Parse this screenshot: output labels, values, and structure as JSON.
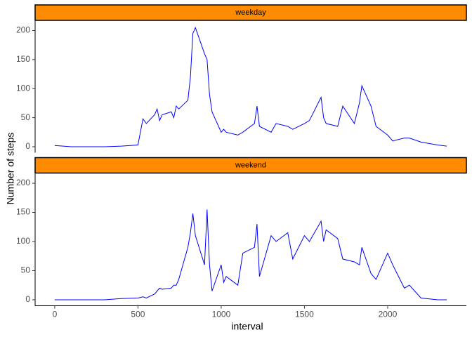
{
  "chart_data": {
    "type": "line",
    "xlabel": "interval",
    "ylabel": "Number of steps",
    "xlim": [
      -117.75,
      2472.75
    ],
    "ylim": [
      -10.3,
      216.3
    ],
    "xticks": [
      0,
      500,
      1000,
      1500,
      2000
    ],
    "yticks": [
      0,
      50,
      100,
      150,
      200
    ],
    "color": "#0000ff",
    "strip_color": "#ff8c00",
    "x": [
      0,
      100,
      200,
      300,
      400,
      500,
      530,
      550,
      600,
      615,
      630,
      645,
      700,
      715,
      730,
      745,
      800,
      815,
      830,
      845,
      900,
      915,
      930,
      945,
      1000,
      1015,
      1030,
      1100,
      1130,
      1200,
      1215,
      1230,
      1300,
      1330,
      1400,
      1430,
      1500,
      1530,
      1600,
      1615,
      1630,
      1700,
      1730,
      1800,
      1830,
      1845,
      1900,
      1930,
      2000,
      2030,
      2100,
      2130,
      2200,
      2300,
      2355
    ],
    "series": [
      {
        "name": "weekday",
        "values": [
          2,
          0,
          0,
          0,
          1,
          3,
          48,
          40,
          55,
          65,
          45,
          55,
          60,
          50,
          70,
          65,
          80,
          120,
          195,
          205,
          160,
          150,
          90,
          60,
          25,
          30,
          25,
          20,
          25,
          40,
          70,
          35,
          25,
          40,
          35,
          30,
          40,
          45,
          85,
          50,
          40,
          35,
          70,
          40,
          75,
          105,
          70,
          35,
          20,
          10,
          15,
          15,
          8,
          3,
          1
        ]
      },
      {
        "name": "weekend",
        "values": [
          0,
          0,
          0,
          0,
          2,
          3,
          5,
          3,
          10,
          15,
          20,
          18,
          20,
          25,
          25,
          35,
          90,
          115,
          148,
          110,
          60,
          155,
          60,
          15,
          60,
          30,
          40,
          25,
          80,
          90,
          130,
          40,
          110,
          100,
          115,
          70,
          110,
          100,
          135,
          100,
          120,
          105,
          70,
          65,
          60,
          90,
          45,
          35,
          80,
          60,
          20,
          25,
          3,
          0,
          0
        ]
      }
    ]
  }
}
